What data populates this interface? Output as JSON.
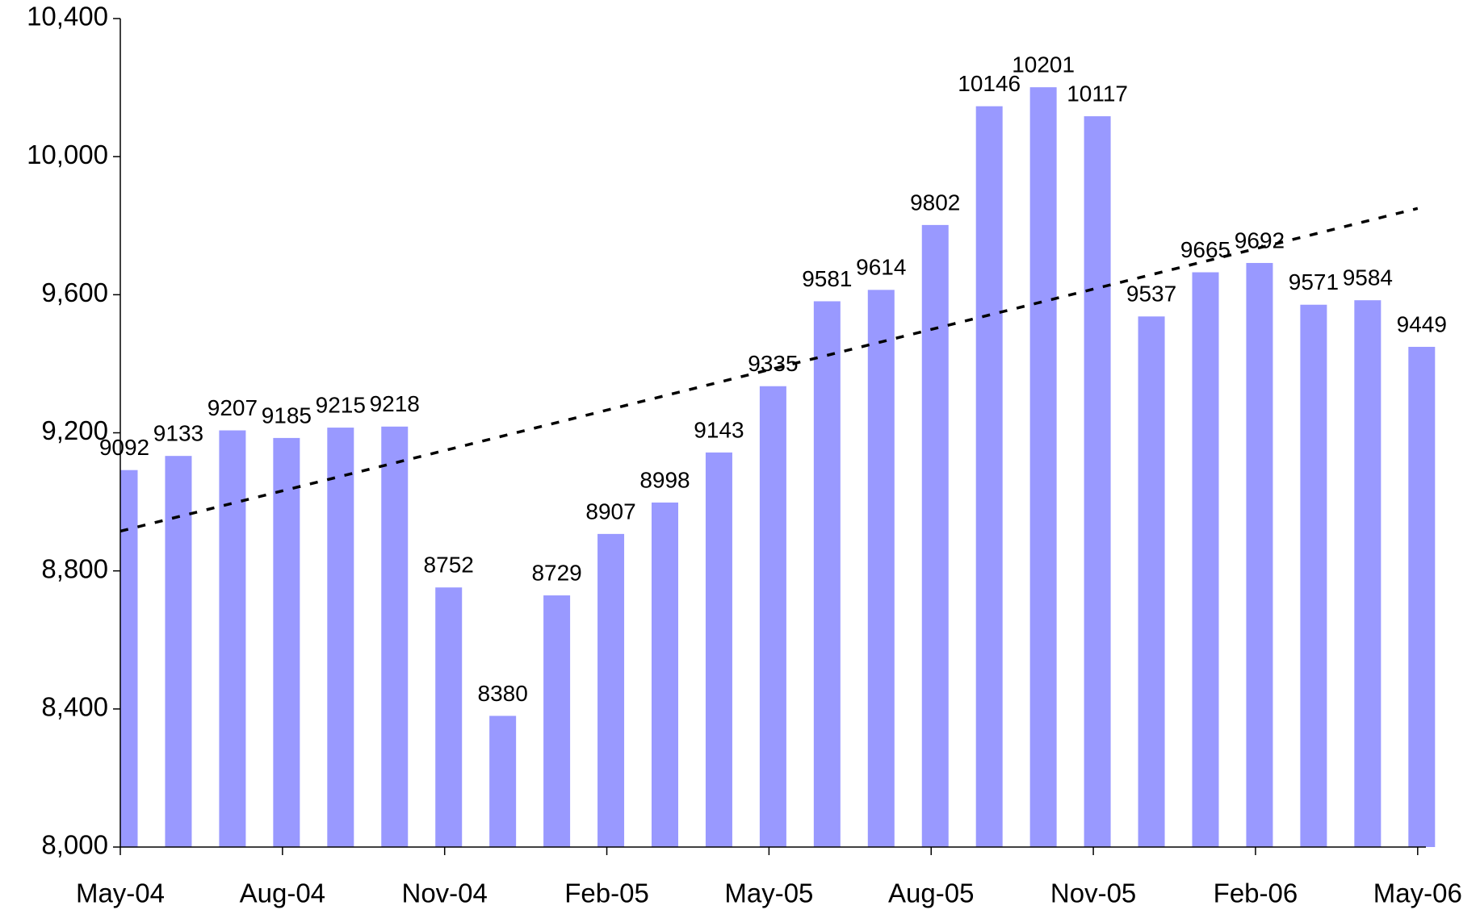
{
  "chart_data": {
    "type": "bar",
    "categories": [
      "May-04",
      null,
      null,
      "Aug-04",
      null,
      null,
      "Nov-04",
      null,
      null,
      "Feb-05",
      null,
      null,
      "May-05",
      null,
      null,
      "Aug-05",
      null,
      null,
      "Nov-05",
      null,
      null,
      "Feb-06",
      null,
      null,
      "May-06"
    ],
    "values": [
      9092,
      9133,
      9207,
      9185,
      9215,
      9218,
      8752,
      8380,
      8729,
      8907,
      8998,
      9143,
      9335,
      9581,
      9614,
      9802,
      10146,
      10201,
      10117,
      9537,
      9665,
      9692,
      9571,
      9584,
      9449
    ],
    "color": "#9999ff",
    "trendline": {
      "start": 8915,
      "end": 9850,
      "color": "#000000"
    },
    "ylim": [
      8000,
      10400
    ],
    "yticks": [
      {
        "value": 8000,
        "label": "8,000"
      },
      {
        "value": 8400,
        "label": "8,400"
      },
      {
        "value": 8800,
        "label": "8,800"
      },
      {
        "value": 9200,
        "label": "9,200"
      },
      {
        "value": 9600,
        "label": "9,600"
      },
      {
        "value": 10000,
        "label": "10,000"
      },
      {
        "value": 10400,
        "label": "10,400"
      }
    ],
    "grid": false
  }
}
